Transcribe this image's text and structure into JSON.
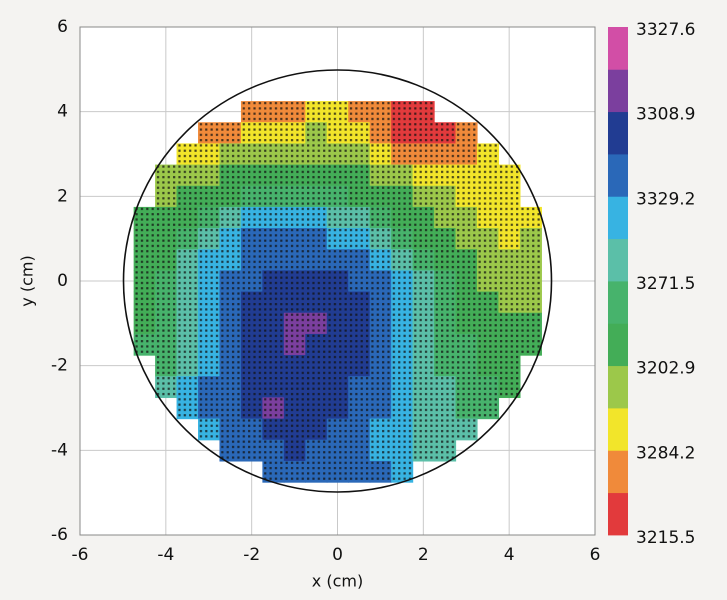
{
  "chart_data": {
    "type": "heatmap",
    "x_label": "x (cm)",
    "y_label": "y (cm)",
    "xlim": [
      -6,
      6
    ],
    "ylim": [
      -6,
      6
    ],
    "xticks": [
      -6,
      -4,
      -2,
      0,
      2,
      4,
      6
    ],
    "yticks": [
      -6,
      -4,
      -2,
      0,
      2,
      4,
      6
    ],
    "grid": true,
    "x": [
      -4.5,
      -4,
      -3.5,
      -3,
      -2.5,
      -2,
      -1.5,
      -1,
      -0.5,
      0,
      0.5,
      1,
      1.5,
      2,
      2.5,
      3,
      3.5,
      4,
      4.5
    ],
    "y": [
      4,
      3.5,
      3,
      2.5,
      2,
      1.5,
      1,
      0.5,
      0,
      -0.5,
      -1,
      -1.5,
      -2,
      -2.5,
      -3,
      -3.5,
      -4,
      -4.5
    ],
    "z": [
      [
        null,
        null,
        null,
        null,
        null,
        1,
        1,
        1,
        2,
        2,
        1,
        1,
        0,
        0,
        null,
        null,
        null,
        null,
        null
      ],
      [
        null,
        null,
        null,
        1,
        1,
        2,
        2,
        2,
        3,
        2,
        2,
        1,
        0,
        0,
        0,
        1,
        null,
        null,
        null
      ],
      [
        null,
        null,
        2,
        2,
        3,
        3,
        3,
        3,
        3,
        3,
        3,
        2,
        1,
        1,
        1,
        1,
        2,
        null,
        null
      ],
      [
        null,
        3,
        3,
        3,
        4,
        4,
        4,
        4,
        4,
        4,
        4,
        3,
        3,
        2,
        2,
        2,
        2,
        2,
        null
      ],
      [
        null,
        3,
        4,
        4,
        4,
        5,
        5,
        5,
        5,
        5,
        4,
        4,
        4,
        3,
        3,
        2,
        2,
        2,
        null
      ],
      [
        4,
        4,
        4,
        5,
        6,
        7,
        7,
        7,
        7,
        6,
        6,
        5,
        4,
        4,
        3,
        3,
        2,
        2,
        2
      ],
      [
        4,
        4,
        5,
        6,
        7,
        8,
        8,
        8,
        8,
        7,
        7,
        6,
        5,
        4,
        4,
        3,
        3,
        2,
        3
      ],
      [
        4,
        4,
        6,
        7,
        7,
        8,
        8,
        8,
        8,
        8,
        8,
        7,
        6,
        5,
        4,
        4,
        3,
        3,
        3
      ],
      [
        4,
        5,
        6,
        7,
        8,
        8,
        9,
        9,
        9,
        9,
        8,
        8,
        7,
        6,
        5,
        4,
        3,
        3,
        3
      ],
      [
        4,
        5,
        6,
        7,
        8,
        9,
        9,
        9,
        9,
        9,
        9,
        8,
        7,
        6,
        5,
        4,
        4,
        3,
        3
      ],
      [
        4,
        5,
        6,
        7,
        8,
        9,
        9,
        10,
        10,
        9,
        9,
        8,
        7,
        6,
        5,
        4,
        4,
        4,
        4
      ],
      [
        5,
        5,
        6,
        7,
        8,
        9,
        9,
        10,
        9,
        9,
        9,
        8,
        7,
        6,
        5,
        5,
        4,
        4,
        4
      ],
      [
        null,
        5,
        6,
        7,
        8,
        9,
        9,
        9,
        9,
        9,
        9,
        8,
        7,
        6,
        5,
        5,
        4,
        4,
        null
      ],
      [
        null,
        6,
        7,
        8,
        8,
        9,
        9,
        9,
        9,
        9,
        8,
        8,
        7,
        6,
        6,
        5,
        5,
        4,
        null
      ],
      [
        null,
        null,
        7,
        8,
        8,
        9,
        10,
        9,
        9,
        9,
        8,
        8,
        7,
        6,
        6,
        5,
        5,
        null,
        null
      ],
      [
        null,
        null,
        null,
        7,
        8,
        8,
        9,
        9,
        9,
        8,
        8,
        7,
        7,
        6,
        6,
        6,
        null,
        null,
        null
      ],
      [
        null,
        null,
        null,
        null,
        8,
        8,
        8,
        9,
        8,
        8,
        8,
        7,
        7,
        6,
        6,
        null,
        null,
        null,
        null
      ],
      [
        null,
        null,
        null,
        null,
        null,
        null,
        8,
        8,
        8,
        8,
        8,
        8,
        7,
        null,
        null,
        null,
        null,
        null,
        null
      ]
    ],
    "colors": [
      "#e23a3c",
      "#f08a3a",
      "#f2e52a",
      "#9cc84a",
      "#43ad57",
      "#47b36c",
      "#5bbfa8",
      "#37b3e2",
      "#2a68b8",
      "#213c92",
      "#7b3f9e",
      "#d24ea6"
    ],
    "colorbar_labels": [
      3327.6,
      3308.9,
      3329.2,
      3271.5,
      3202.9,
      3284.2,
      3215.5
    ]
  }
}
